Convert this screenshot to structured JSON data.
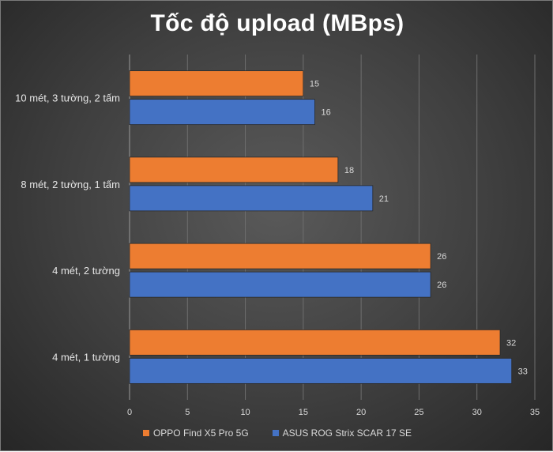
{
  "chart_data": {
    "type": "bar",
    "orientation": "horizontal",
    "title": "Tốc độ upload (MBps)",
    "categories": [
      "10 mét, 3 tường, 2 tấm",
      "8 mét, 2 tường, 1 tấm",
      "4 mét, 2 tường",
      "4 mét, 1 tường"
    ],
    "series": [
      {
        "name": "OPPO Find X5 Pro 5G",
        "color": "#ed7d31",
        "values": [
          15,
          18,
          26,
          32
        ]
      },
      {
        "name": "ASUS ROG Strix SCAR 17 SE",
        "color": "#4472c4",
        "values": [
          16,
          21,
          26,
          33
        ]
      }
    ],
    "xlim": [
      0,
      35
    ],
    "xticks": [
      0,
      5,
      10,
      15,
      20,
      25,
      30,
      35
    ],
    "grid": true,
    "data_labels": true,
    "legend_position": "bottom"
  }
}
